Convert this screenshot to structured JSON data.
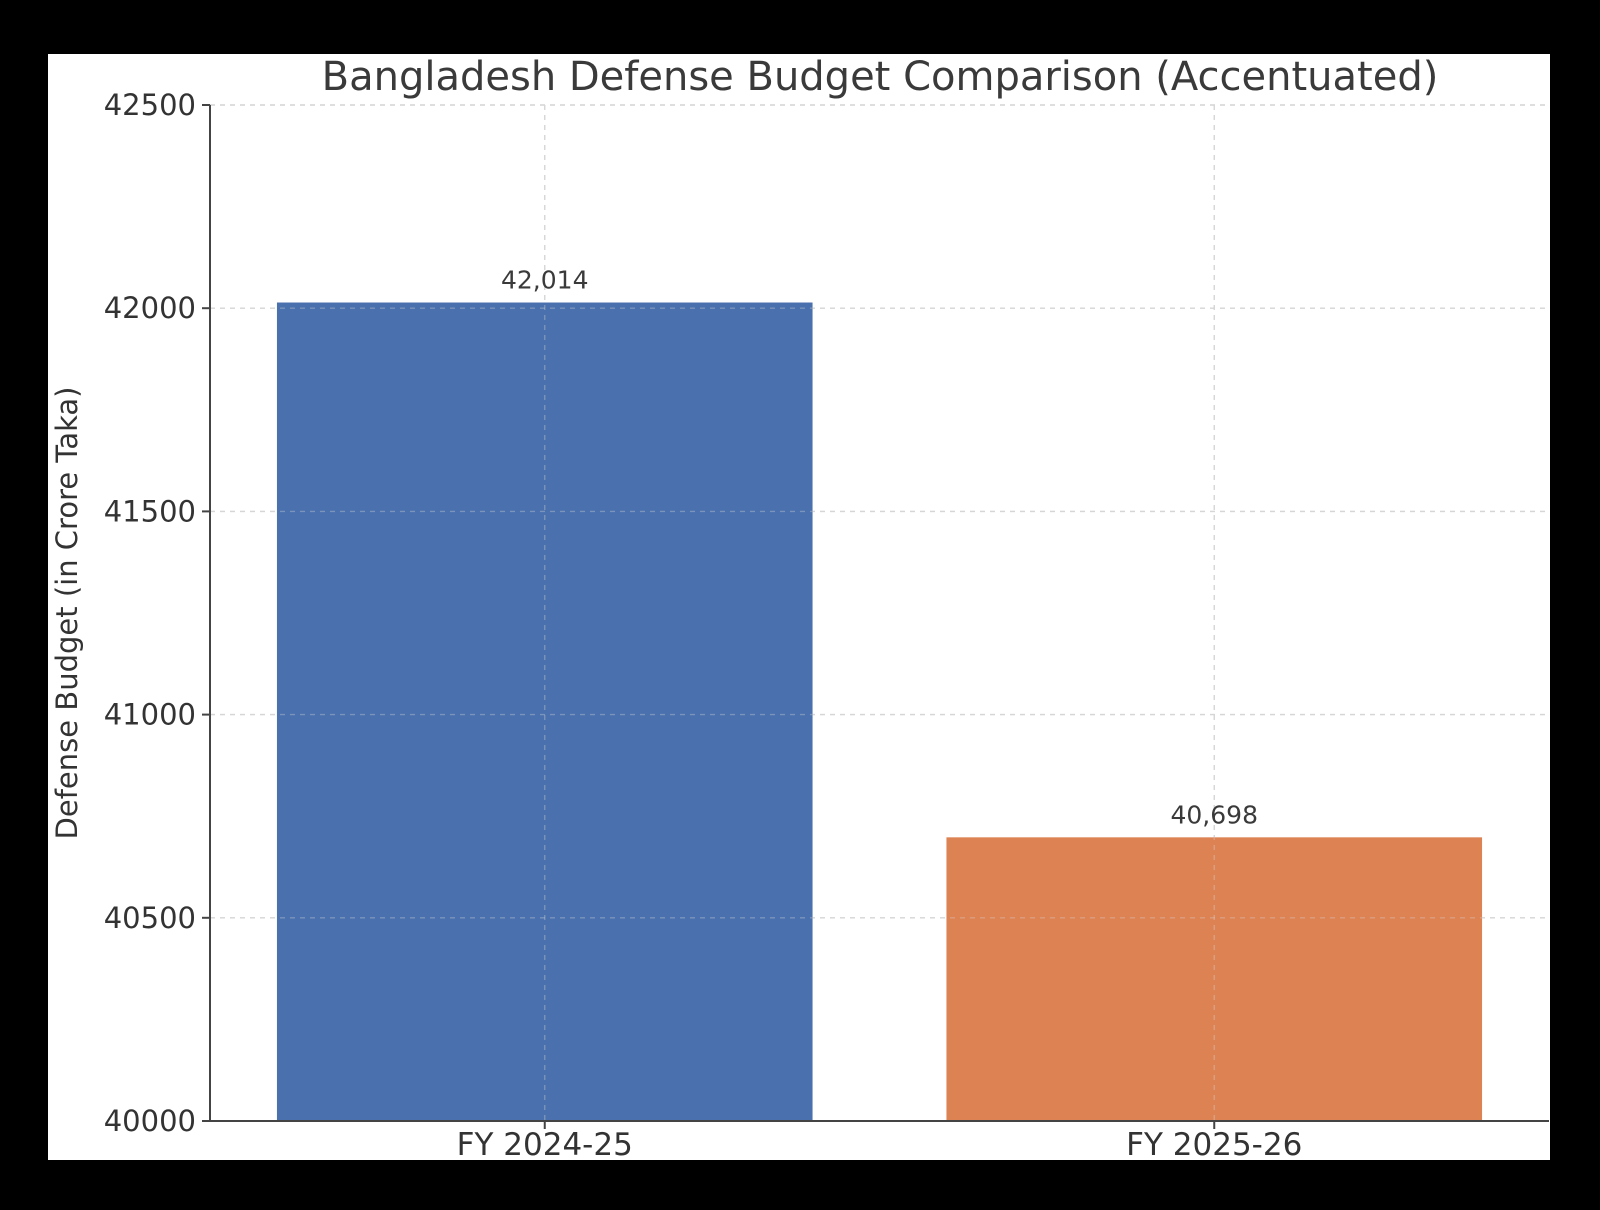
{
  "chart_data": {
    "type": "bar",
    "title": "Bangladesh Defense Budget Comparison (Accentuated)",
    "xlabel": "",
    "ylabel": "Defense Budget (in Crore Taka)",
    "categories": [
      "FY 2024-25",
      "FY 2025-26"
    ],
    "values": [
      42014,
      40698
    ],
    "value_labels": [
      "42,014",
      "40,698"
    ],
    "colors": [
      "#4a70ad",
      "#dd8253"
    ],
    "ylim": [
      40000,
      42500
    ],
    "yticks": [
      40000,
      40500,
      41000,
      41500,
      42000,
      42500
    ],
    "ytick_labels": [
      "40000",
      "40500",
      "41000",
      "41500",
      "42000",
      "42500"
    ],
    "grid": true,
    "legend": "none"
  }
}
